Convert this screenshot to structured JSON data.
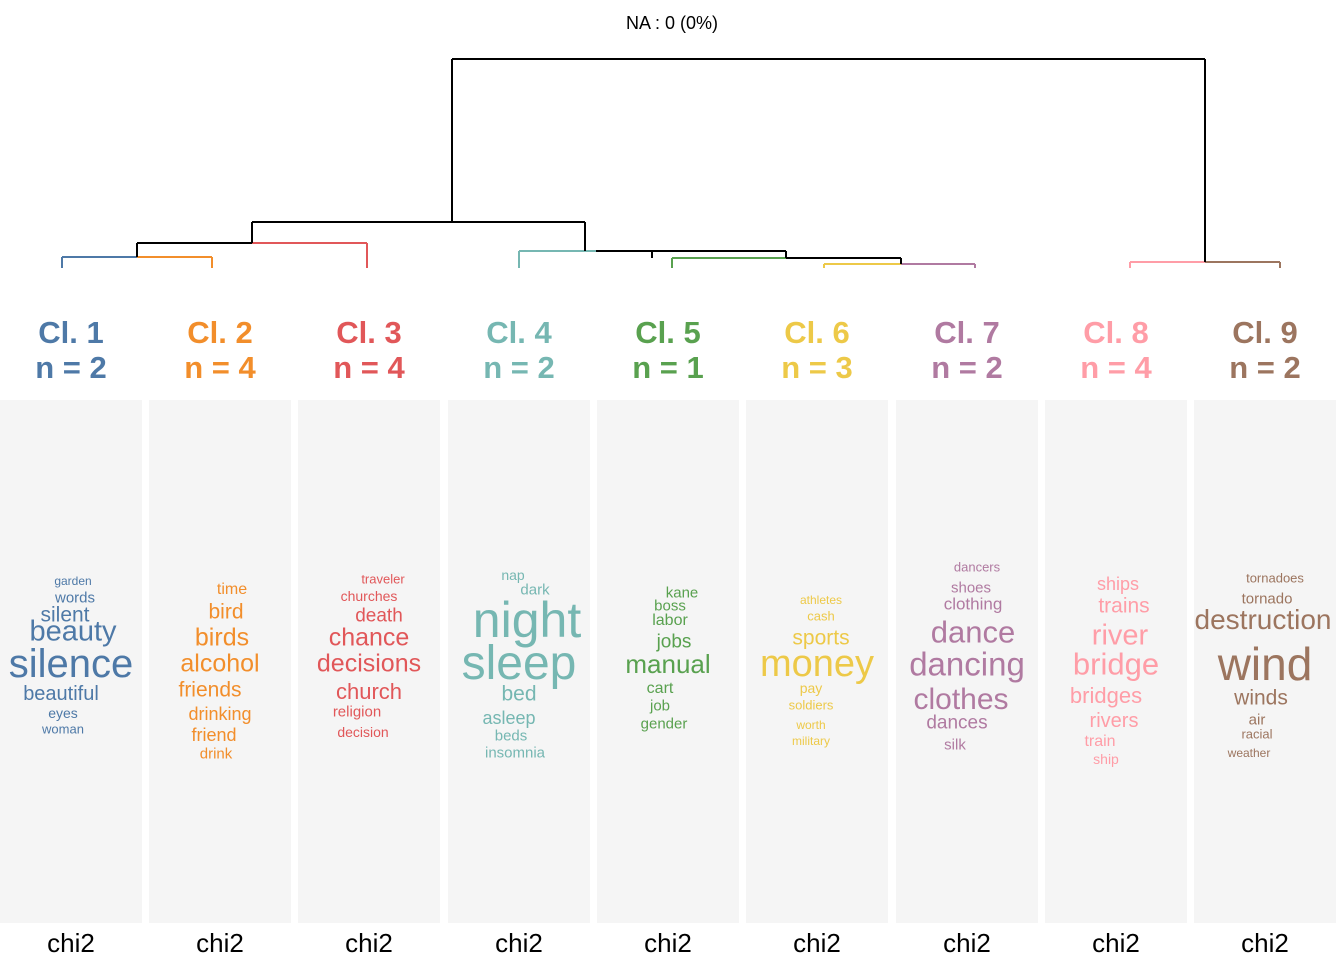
{
  "na_label": "NA : 0 (0%)",
  "footer_label": "chi2",
  "clusters": [
    {
      "id": 1,
      "name": "Cl. 1",
      "n": "n = 2",
      "color": "#4e79a7",
      "branch_label": "1",
      "words": [
        {
          "t": "garden",
          "s": 12
        },
        {
          "t": "words",
          "s": 15
        },
        {
          "t": "silent",
          "s": 21
        },
        {
          "t": "beauty",
          "s": 29
        },
        {
          "t": "silence",
          "s": 40
        },
        {
          "t": "beautiful",
          "s": 20
        },
        {
          "t": "eyes",
          "s": 14
        },
        {
          "t": "woman",
          "s": 13
        }
      ]
    },
    {
      "id": 2,
      "name": "Cl. 2",
      "n": "n = 4",
      "color": "#f28e2b",
      "branch_label": "2",
      "words": [
        {
          "t": "time",
          "s": 16
        },
        {
          "t": "bird",
          "s": 21
        },
        {
          "t": "birds",
          "s": 25
        },
        {
          "t": "alcohol",
          "s": 25
        },
        {
          "t": "friends",
          "s": 21
        },
        {
          "t": "drinking",
          "s": 18
        },
        {
          "t": "friend",
          "s": 18
        },
        {
          "t": "drink",
          "s": 15
        }
      ]
    },
    {
      "id": 3,
      "name": "Cl. 3",
      "n": "n = 4",
      "color": "#e15759",
      "branch_label": "3",
      "words": [
        {
          "t": "traveler",
          "s": 13
        },
        {
          "t": "churches",
          "s": 14
        },
        {
          "t": "death",
          "s": 19
        },
        {
          "t": "chance",
          "s": 25
        },
        {
          "t": "decisions",
          "s": 25
        },
        {
          "t": "church",
          "s": 22
        },
        {
          "t": "religion",
          "s": 15
        },
        {
          "t": "decision",
          "s": 14
        }
      ]
    },
    {
      "id": 4,
      "name": "Cl. 4",
      "n": "n = 2",
      "color": "#76b7b2",
      "branch_label": "4",
      "words": [
        {
          "t": "nap",
          "s": 14
        },
        {
          "t": "dark",
          "s": 15
        },
        {
          "t": "night",
          "s": 50
        },
        {
          "t": "sleep",
          "s": 48
        },
        {
          "t": "bed",
          "s": 21
        },
        {
          "t": "asleep",
          "s": 18
        },
        {
          "t": "beds",
          "s": 15
        },
        {
          "t": "insomnia",
          "s": 15
        }
      ]
    },
    {
      "id": 5,
      "name": "Cl. 5",
      "n": "n = 1",
      "color": "#59a14f",
      "branch_label": "5",
      "words": [
        {
          "t": "kane",
          "s": 15
        },
        {
          "t": "boss",
          "s": 15
        },
        {
          "t": "labor",
          "s": 16
        },
        {
          "t": "jobs",
          "s": 19
        },
        {
          "t": "manual",
          "s": 26
        },
        {
          "t": "cart",
          "s": 16
        },
        {
          "t": "job",
          "s": 15
        },
        {
          "t": "gender",
          "s": 15
        }
      ]
    },
    {
      "id": 6,
      "name": "Cl. 6",
      "n": "n = 3",
      "color": "#edc948",
      "branch_label": "6",
      "words": [
        {
          "t": "athletes",
          "s": 12
        },
        {
          "t": "cash",
          "s": 13
        },
        {
          "t": "sports",
          "s": 21
        },
        {
          "t": "money",
          "s": 38
        },
        {
          "t": "pay",
          "s": 14
        },
        {
          "t": "soldiers",
          "s": 13
        },
        {
          "t": "worth",
          "s": 12
        },
        {
          "t": "military",
          "s": 12
        }
      ]
    },
    {
      "id": 7,
      "name": "Cl. 7",
      "n": "n = 2",
      "color": "#b07aa1",
      "branch_label": "7",
      "words": [
        {
          "t": "dancers",
          "s": 13
        },
        {
          "t": "shoes",
          "s": 15
        },
        {
          "t": "clothing",
          "s": 17
        },
        {
          "t": "dance",
          "s": 31
        },
        {
          "t": "dancing",
          "s": 33
        },
        {
          "t": "clothes",
          "s": 30
        },
        {
          "t": "dances",
          "s": 19
        },
        {
          "t": "silk",
          "s": 15
        }
      ]
    },
    {
      "id": 8,
      "name": "Cl. 8",
      "n": "n = 4",
      "color": "#ff9da7",
      "branch_label": "8",
      "words": [
        {
          "t": "ships",
          "s": 18
        },
        {
          "t": "trains",
          "s": 21
        },
        {
          "t": "river",
          "s": 29
        },
        {
          "t": "bridge",
          "s": 31
        },
        {
          "t": "bridges",
          "s": 22
        },
        {
          "t": "rivers",
          "s": 20
        },
        {
          "t": "train",
          "s": 16
        },
        {
          "t": "ship",
          "s": 14
        }
      ]
    },
    {
      "id": 9,
      "name": "Cl. 9",
      "n": "n = 2",
      "color": "#9c755f",
      "branch_label": "9",
      "words": [
        {
          "t": "tornadoes",
          "s": 13
        },
        {
          "t": "tornado",
          "s": 15
        },
        {
          "t": "destruction",
          "s": 28
        },
        {
          "t": "wind",
          "s": 46
        },
        {
          "t": "winds",
          "s": 21
        },
        {
          "t": "air",
          "s": 15
        },
        {
          "t": "racial",
          "s": 13
        },
        {
          "t": "weather",
          "s": 12
        }
      ]
    }
  ]
}
